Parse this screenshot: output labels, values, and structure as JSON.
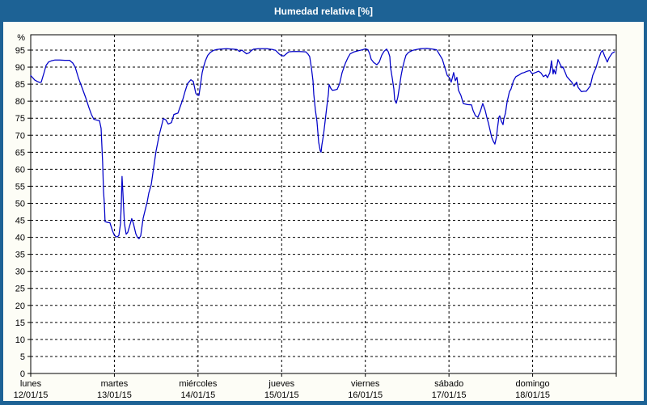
{
  "window": {
    "title": "Humedad relativa [%]"
  },
  "colors": {
    "titlebar_bg": "#1d6295",
    "frame": "#1d6295",
    "title_text": "#ffffff",
    "content_bg": "#fdfdf6",
    "plot_bg": "#ffffff",
    "line": "#0000c8",
    "grid": "#000000",
    "text": "#000000"
  },
  "chart_data": {
    "type": "line",
    "title": "Humedad relativa [%]",
    "legend": "none",
    "grid": "dashed",
    "y_axis": {
      "unit": "%",
      "ticks": [
        0,
        5,
        10,
        15,
        20,
        25,
        30,
        35,
        40,
        45,
        50,
        55,
        60,
        65,
        70,
        75,
        80,
        85,
        90,
        95
      ],
      "ylim": [
        0,
        99.5
      ],
      "gridlines": "dashed horizontal at every tick"
    },
    "x_axis": {
      "gridlines": "dashed vertical at each day boundary",
      "days": [
        {
          "name": "lunes",
          "date": "12/01/15"
        },
        {
          "name": "martes",
          "date": "13/01/15"
        },
        {
          "name": "miércoles",
          "date": "14/01/15"
        },
        {
          "name": "jueves",
          "date": "15/01/15"
        },
        {
          "name": "viernes",
          "date": "16/01/15"
        },
        {
          "name": "sábado",
          "date": "17/01/15"
        },
        {
          "name": "domingo",
          "date": "18/01/15"
        }
      ]
    },
    "series": [
      {
        "name": "Humedad relativa",
        "unit": "%",
        "points": [
          [
            0,
            87.5
          ],
          [
            0.019,
            87
          ],
          [
            0.048,
            86.2
          ],
          [
            0.077,
            85.8
          ],
          [
            0.106,
            85.5
          ],
          [
            0.126,
            85.6
          ],
          [
            0.155,
            88
          ],
          [
            0.184,
            90.5
          ],
          [
            0.213,
            91.5
          ],
          [
            0.251,
            91.9
          ],
          [
            0.29,
            92.1
          ],
          [
            0.348,
            92.1
          ],
          [
            0.406,
            92
          ],
          [
            0.464,
            92
          ],
          [
            0.503,
            91.2
          ],
          [
            0.532,
            90
          ],
          [
            0.57,
            86.8
          ],
          [
            0.619,
            83.6
          ],
          [
            0.657,
            81
          ],
          [
            0.696,
            78.1
          ],
          [
            0.725,
            76.1
          ],
          [
            0.754,
            74.7
          ],
          [
            0.793,
            74.4
          ],
          [
            0.822,
            74.3
          ],
          [
            0.841,
            72
          ],
          [
            0.86,
            62
          ],
          [
            0.87,
            53.5
          ],
          [
            0.88,
            50
          ],
          [
            0.889,
            44.6
          ],
          [
            0.918,
            44.4
          ],
          [
            0.947,
            44.3
          ],
          [
            0.977,
            42
          ],
          [
            0.996,
            40.8
          ],
          [
            1.015,
            40.3
          ],
          [
            1.035,
            40.1
          ],
          [
            1.054,
            40.6
          ],
          [
            1.073,
            44
          ],
          [
            1.083,
            50
          ],
          [
            1.092,
            57.9
          ],
          [
            1.102,
            53
          ],
          [
            1.112,
            48
          ],
          [
            1.121,
            44
          ],
          [
            1.141,
            40.9
          ],
          [
            1.16,
            41.5
          ],
          [
            1.179,
            43
          ],
          [
            1.208,
            45.5
          ],
          [
            1.228,
            44
          ],
          [
            1.257,
            41
          ],
          [
            1.276,
            40
          ],
          [
            1.295,
            39.6
          ],
          [
            1.315,
            40.5
          ],
          [
            1.344,
            45.6
          ],
          [
            1.373,
            48.5
          ],
          [
            1.392,
            50.4
          ],
          [
            1.412,
            53
          ],
          [
            1.441,
            55.5
          ],
          [
            1.47,
            60.5
          ],
          [
            1.499,
            65.4
          ],
          [
            1.537,
            70.2
          ],
          [
            1.566,
            73
          ],
          [
            1.586,
            74.9
          ],
          [
            1.615,
            74.5
          ],
          [
            1.644,
            73.3
          ],
          [
            1.682,
            73.7
          ],
          [
            1.711,
            76.1
          ],
          [
            1.76,
            76.5
          ],
          [
            1.789,
            78.5
          ],
          [
            1.818,
            80.5
          ],
          [
            1.847,
            83
          ],
          [
            1.876,
            85.2
          ],
          [
            1.914,
            86.3
          ],
          [
            1.943,
            85.8
          ],
          [
            1.972,
            82.4
          ],
          [
            1.992,
            81.8
          ],
          [
            2.011,
            81.7
          ],
          [
            2.03,
            85
          ],
          [
            2.05,
            88.4
          ],
          [
            2.069,
            90.3
          ],
          [
            2.088,
            91.9
          ],
          [
            2.117,
            93.5
          ],
          [
            2.146,
            94.3
          ],
          [
            2.185,
            94.9
          ],
          [
            2.224,
            95.2
          ],
          [
            2.262,
            95.3
          ],
          [
            2.34,
            95.4
          ],
          [
            2.417,
            95.3
          ],
          [
            2.465,
            95.2
          ],
          [
            2.494,
            94.6
          ],
          [
            2.523,
            95
          ],
          [
            2.552,
            94.5
          ],
          [
            2.581,
            93.9
          ],
          [
            2.61,
            94.2
          ],
          [
            2.639,
            94.9
          ],
          [
            2.668,
            95.3
          ],
          [
            2.726,
            95.4
          ],
          [
            2.823,
            95.4
          ],
          [
            2.891,
            95.2
          ],
          [
            2.929,
            94.9
          ],
          [
            2.968,
            93.9
          ],
          [
            2.997,
            93.4
          ],
          [
            3.026,
            93.3
          ],
          [
            3.055,
            93.9
          ],
          [
            3.084,
            94.5
          ],
          [
            3.132,
            94.6
          ],
          [
            3.21,
            94.6
          ],
          [
            3.287,
            94.5
          ],
          [
            3.316,
            93.8
          ],
          [
            3.335,
            93.1
          ],
          [
            3.355,
            89.9
          ],
          [
            3.374,
            86
          ],
          [
            3.384,
            82
          ],
          [
            3.403,
            77.3
          ],
          [
            3.422,
            74.1
          ],
          [
            3.442,
            68
          ],
          [
            3.461,
            65.4
          ],
          [
            3.471,
            65
          ],
          [
            3.48,
            67
          ],
          [
            3.5,
            70.1
          ],
          [
            3.519,
            74.1
          ],
          [
            3.538,
            78
          ],
          [
            3.558,
            82
          ],
          [
            3.567,
            84.9
          ],
          [
            3.587,
            83.8
          ],
          [
            3.606,
            83.2
          ],
          [
            3.635,
            83.3
          ],
          [
            3.664,
            83.5
          ],
          [
            3.693,
            85.2
          ],
          [
            3.722,
            88.4
          ],
          [
            3.761,
            91.1
          ],
          [
            3.79,
            92.7
          ],
          [
            3.819,
            93.9
          ],
          [
            3.867,
            94.5
          ],
          [
            3.916,
            94.8
          ],
          [
            3.964,
            95.1
          ],
          [
            4.003,
            95.4
          ],
          [
            4.032,
            95.1
          ],
          [
            4.051,
            94
          ],
          [
            4.07,
            92.3
          ],
          [
            4.099,
            91.4
          ],
          [
            4.138,
            90.7
          ],
          [
            4.167,
            91.5
          ],
          [
            4.196,
            93.5
          ],
          [
            4.225,
            94.7
          ],
          [
            4.254,
            95.3
          ],
          [
            4.274,
            94.5
          ],
          [
            4.293,
            93.1
          ],
          [
            4.302,
            89.9
          ],
          [
            4.322,
            86.8
          ],
          [
            4.341,
            83.6
          ],
          [
            4.351,
            80.4
          ],
          [
            4.37,
            79.4
          ],
          [
            4.389,
            81.2
          ],
          [
            4.409,
            84.4
          ],
          [
            4.428,
            87.6
          ],
          [
            4.447,
            89.9
          ],
          [
            4.467,
            91.9
          ],
          [
            4.486,
            93.5
          ],
          [
            4.515,
            94.3
          ],
          [
            4.563,
            94.9
          ],
          [
            4.612,
            95.2
          ],
          [
            4.66,
            95.4
          ],
          [
            4.737,
            95.5
          ],
          [
            4.805,
            95.3
          ],
          [
            4.853,
            95.1
          ],
          [
            4.882,
            93.9
          ],
          [
            4.921,
            92.3
          ],
          [
            4.95,
            89.9
          ],
          [
            4.979,
            87.6
          ],
          [
            5.008,
            86.8
          ],
          [
            5.027,
            85.6
          ],
          [
            5.047,
            87.5
          ],
          [
            5.056,
            88.4
          ],
          [
            5.076,
            86
          ],
          [
            5.095,
            87
          ],
          [
            5.114,
            83.2
          ],
          [
            5.143,
            81.7
          ],
          [
            5.172,
            79.3
          ],
          [
            5.221,
            79
          ],
          [
            5.269,
            78.9
          ],
          [
            5.288,
            77.3
          ],
          [
            5.317,
            75.7
          ],
          [
            5.346,
            75.3
          ],
          [
            5.375,
            77
          ],
          [
            5.404,
            79.3
          ],
          [
            5.433,
            77.3
          ],
          [
            5.452,
            75.3
          ],
          [
            5.472,
            73.5
          ],
          [
            5.491,
            71.5
          ],
          [
            5.51,
            69.4
          ],
          [
            5.53,
            68.2
          ],
          [
            5.549,
            67.4
          ],
          [
            5.568,
            69.5
          ],
          [
            5.578,
            71.7
          ],
          [
            5.597,
            75.3
          ],
          [
            5.607,
            75.7
          ],
          [
            5.626,
            74.1
          ],
          [
            5.646,
            73.1
          ],
          [
            5.655,
            74.7
          ],
          [
            5.675,
            76.5
          ],
          [
            5.694,
            79.6
          ],
          [
            5.723,
            82.8
          ],
          [
            5.742,
            83.6
          ],
          [
            5.771,
            86
          ],
          [
            5.8,
            87.2
          ],
          [
            5.839,
            87.7
          ],
          [
            5.868,
            88.2
          ],
          [
            5.897,
            88.4
          ],
          [
            5.936,
            88.8
          ],
          [
            5.965,
            89
          ],
          [
            5.994,
            88.1
          ],
          [
            6.013,
            88.2
          ],
          [
            6.042,
            88.5
          ],
          [
            6.071,
            88.8
          ],
          [
            6.1,
            88.3
          ],
          [
            6.129,
            87.2
          ],
          [
            6.158,
            87.7
          ],
          [
            6.177,
            86.9
          ],
          [
            6.206,
            88.4
          ],
          [
            6.226,
            91.9
          ],
          [
            6.245,
            88
          ],
          [
            6.255,
            89.3
          ],
          [
            6.274,
            88
          ],
          [
            6.303,
            92.2
          ],
          [
            6.332,
            90.7
          ],
          [
            6.351,
            89.8
          ],
          [
            6.361,
            90.1
          ],
          [
            6.39,
            88.4
          ],
          [
            6.409,
            87.2
          ],
          [
            6.438,
            86.4
          ],
          [
            6.467,
            85.6
          ],
          [
            6.487,
            84.8
          ],
          [
            6.496,
            84.4
          ],
          [
            6.525,
            85.6
          ],
          [
            6.545,
            84
          ],
          [
            6.583,
            82.8
          ],
          [
            6.612,
            82.9
          ],
          [
            6.641,
            82.9
          ],
          [
            6.69,
            84.5
          ],
          [
            6.719,
            87.6
          ],
          [
            6.758,
            89.9
          ],
          [
            6.787,
            92.3
          ],
          [
            6.816,
            94.3
          ],
          [
            6.835,
            94.9
          ],
          [
            6.864,
            93.1
          ],
          [
            6.893,
            91.5
          ],
          [
            6.913,
            92.7
          ],
          [
            6.951,
            94.1
          ],
          [
            6.98,
            94.5
          ]
        ]
      }
    ]
  }
}
